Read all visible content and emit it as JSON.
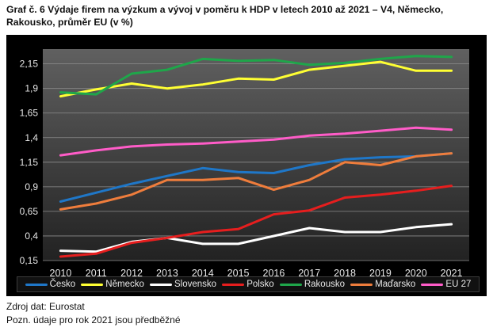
{
  "chart_title": "Graf č. 6 Výdaje firem na výzkum a vývoj v poměru k HDP v letech 2010 až 2021 – V4, Německo, Rakousko, průměr EU (v %)",
  "source_text": "Zdroj dat: Eurostat",
  "note_text": "Pozn. údaje pro rok 2021 jsou předběžné",
  "colors": {
    "background": "#000000",
    "plot_top": "#606060",
    "plot_bottom": "#222222",
    "grid": "#8c8c8c",
    "tick_text": "#e6e6e6"
  },
  "chart_data": {
    "type": "line",
    "title": "Graf č. 6 Výdaje firem na výzkum a vývoj v poměru k HDP v letech 2010 až 2021 – V4, Německo, Rakousko, průměr EU (v %)",
    "xlabel": "",
    "ylabel": "",
    "ylim": [
      0.15,
      2.3
    ],
    "y_ticks": [
      "0,15",
      "0,4",
      "0,65",
      "0,9",
      "1,15",
      "1,4",
      "1,65",
      "1,9",
      "2,15"
    ],
    "grid": true,
    "legend_position": "bottom",
    "x": [
      "2010",
      "2011",
      "2012",
      "2013",
      "2014",
      "2015",
      "2016",
      "2017",
      "2018",
      "2019",
      "2020",
      "2021"
    ],
    "series": [
      {
        "name": "Česko",
        "color": "#1f77c8",
        "values": [
          0.75,
          0.84,
          0.93,
          1.01,
          1.09,
          1.05,
          1.04,
          1.12,
          1.18,
          1.2,
          1.21,
          1.24
        ]
      },
      {
        "name": "Německo",
        "color": "#ffff33",
        "values": [
          1.82,
          1.89,
          1.95,
          1.9,
          1.94,
          2.0,
          1.99,
          2.09,
          2.13,
          2.17,
          2.08,
          2.08
        ]
      },
      {
        "name": "Slovensko",
        "color": "#ffffff",
        "values": [
          0.25,
          0.24,
          0.34,
          0.38,
          0.32,
          0.32,
          0.4,
          0.48,
          0.44,
          0.44,
          0.49,
          0.52
        ]
      },
      {
        "name": "Polsko",
        "color": "#e61e1e",
        "values": [
          0.19,
          0.22,
          0.33,
          0.38,
          0.44,
          0.47,
          0.62,
          0.66,
          0.79,
          0.82,
          0.86,
          0.91
        ]
      },
      {
        "name": "Rakousko",
        "color": "#1fa64a",
        "values": [
          1.86,
          1.84,
          2.05,
          2.09,
          2.2,
          2.18,
          2.19,
          2.14,
          2.16,
          2.2,
          2.23,
          2.22
        ]
      },
      {
        "name": "Maďarsko",
        "color": "#ef7d3c",
        "values": [
          0.67,
          0.73,
          0.82,
          0.97,
          0.97,
          0.99,
          0.87,
          0.97,
          1.15,
          1.12,
          1.21,
          1.24
        ]
      },
      {
        "name": "EU 27",
        "color": "#ff5cc8",
        "values": [
          1.22,
          1.27,
          1.31,
          1.33,
          1.34,
          1.36,
          1.38,
          1.42,
          1.44,
          1.47,
          1.5,
          1.48
        ]
      }
    ]
  }
}
